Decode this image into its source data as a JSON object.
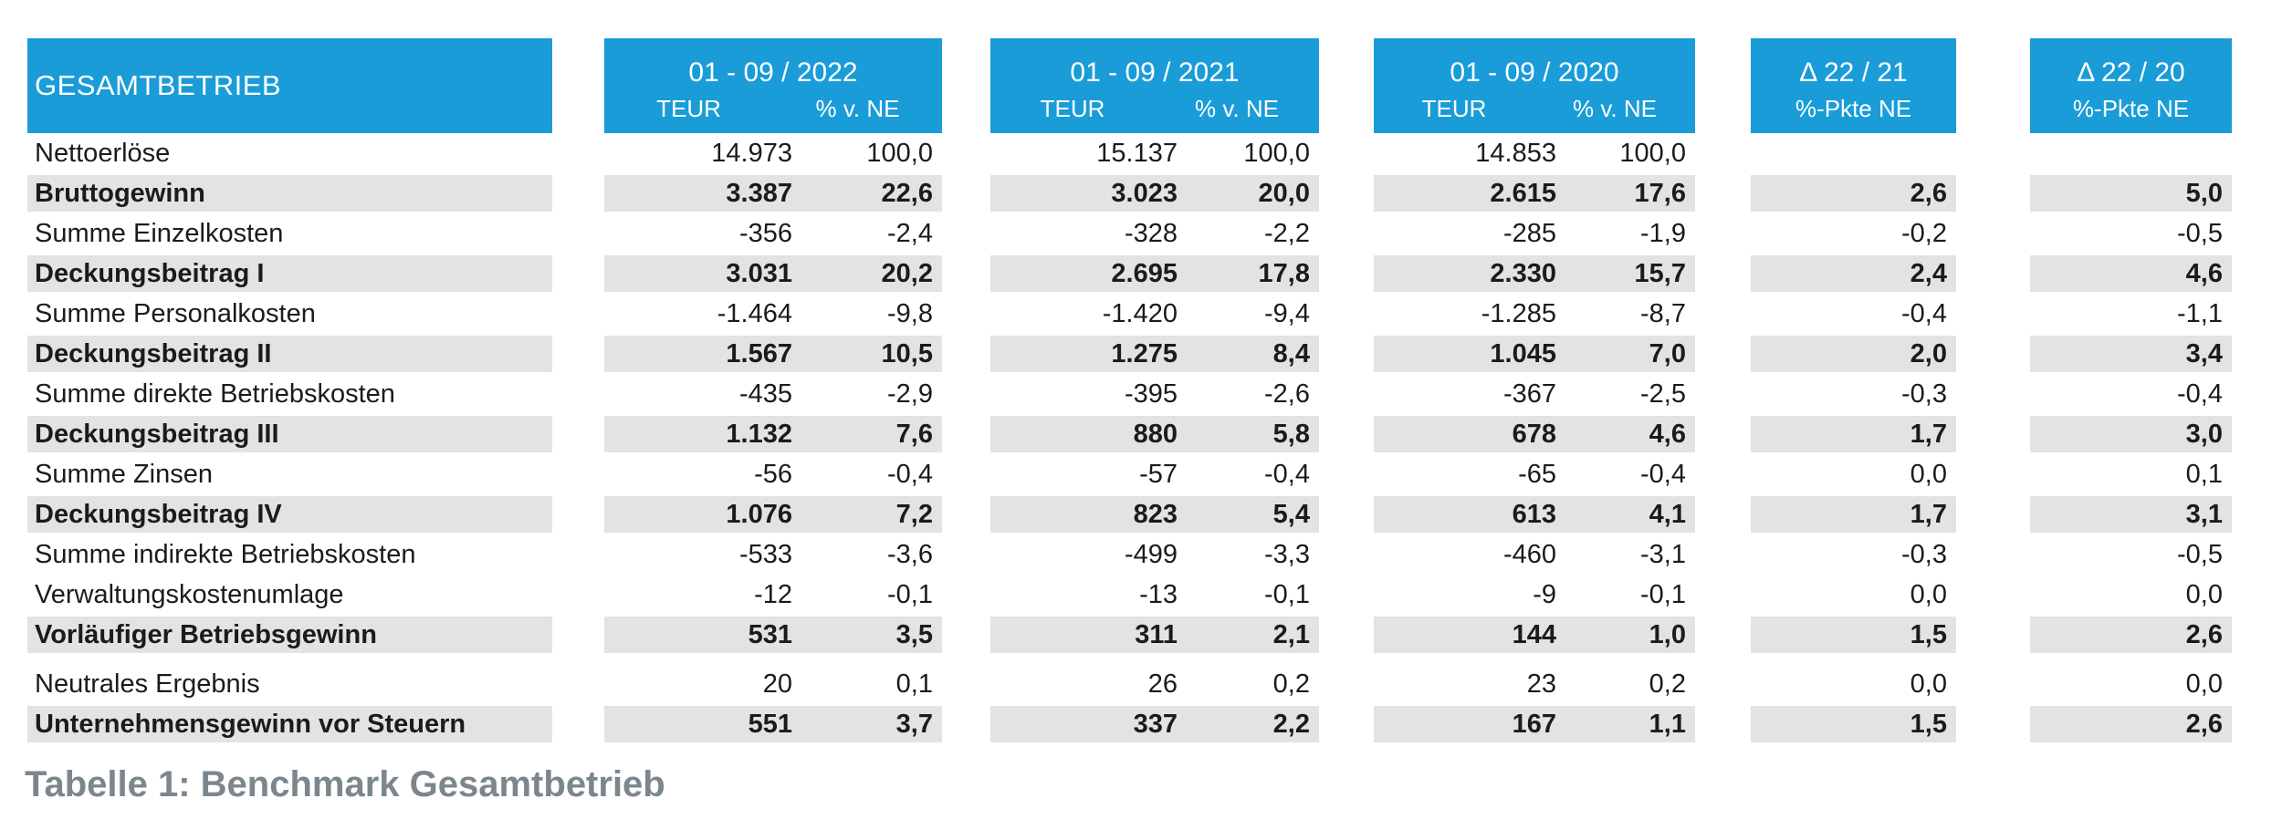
{
  "table": {
    "title": "GESAMTBETRIEB",
    "column_groups": [
      {
        "label": "01 - 09 / 2022",
        "sub_teur": "TEUR",
        "sub_pct": "% v. NE"
      },
      {
        "label": "01 - 09 / 2021",
        "sub_teur": "TEUR",
        "sub_pct": "% v. NE"
      },
      {
        "label": "01 - 09 / 2020",
        "sub_teur": "TEUR",
        "sub_pct": "% v. NE"
      },
      {
        "label": "Δ 22 / 21",
        "sub": "%-Pkte NE"
      },
      {
        "label": "Δ 22 / 20",
        "sub": "%-Pkte NE"
      }
    ],
    "rows": [
      {
        "label": "Nettoerlöse",
        "bold": false,
        "gap_before": false,
        "values": [
          "14.973",
          "100,0",
          "15.137",
          "100,0",
          "14.853",
          "100,0",
          "",
          ""
        ]
      },
      {
        "label": "Bruttogewinn",
        "bold": true,
        "gap_before": false,
        "values": [
          "3.387",
          "22,6",
          "3.023",
          "20,0",
          "2.615",
          "17,6",
          "2,6",
          "5,0"
        ]
      },
      {
        "label": "Summe Einzelkosten",
        "bold": false,
        "gap_before": false,
        "values": [
          "-356",
          "-2,4",
          "-328",
          "-2,2",
          "-285",
          "-1,9",
          "-0,2",
          "-0,5"
        ]
      },
      {
        "label": "Deckungsbeitrag I",
        "bold": true,
        "gap_before": false,
        "values": [
          "3.031",
          "20,2",
          "2.695",
          "17,8",
          "2.330",
          "15,7",
          "2,4",
          "4,6"
        ]
      },
      {
        "label": "Summe Personalkosten",
        "bold": false,
        "gap_before": false,
        "values": [
          "-1.464",
          "-9,8",
          "-1.420",
          "-9,4",
          "-1.285",
          "-8,7",
          "-0,4",
          "-1,1"
        ]
      },
      {
        "label": "Deckungsbeitrag II",
        "bold": true,
        "gap_before": false,
        "values": [
          "1.567",
          "10,5",
          "1.275",
          "8,4",
          "1.045",
          "7,0",
          "2,0",
          "3,4"
        ]
      },
      {
        "label": "Summe direkte Betriebskosten",
        "bold": false,
        "gap_before": false,
        "values": [
          "-435",
          "-2,9",
          "-395",
          "-2,6",
          "-367",
          "-2,5",
          "-0,3",
          "-0,4"
        ]
      },
      {
        "label": "Deckungsbeitrag III",
        "bold": true,
        "gap_before": false,
        "values": [
          "1.132",
          "7,6",
          "880",
          "5,8",
          "678",
          "4,6",
          "1,7",
          "3,0"
        ]
      },
      {
        "label": "Summe Zinsen",
        "bold": false,
        "gap_before": false,
        "values": [
          "-56",
          "-0,4",
          "-57",
          "-0,4",
          "-65",
          "-0,4",
          "0,0",
          "0,1"
        ]
      },
      {
        "label": "Deckungsbeitrag IV",
        "bold": true,
        "gap_before": false,
        "values": [
          "1.076",
          "7,2",
          "823",
          "5,4",
          "613",
          "4,1",
          "1,7",
          "3,1"
        ]
      },
      {
        "label": "Summe indirekte Betriebskosten",
        "bold": false,
        "gap_before": false,
        "values": [
          "-533",
          "-3,6",
          "-499",
          "-3,3",
          "-460",
          "-3,1",
          "-0,3",
          "-0,5"
        ]
      },
      {
        "label": "Verwaltungskostenumlage",
        "bold": false,
        "gap_before": false,
        "values": [
          "-12",
          "-0,1",
          "-13",
          "-0,1",
          "-9",
          "-0,1",
          "0,0",
          "0,0"
        ]
      },
      {
        "label": "Vorläufiger Betriebsgewinn",
        "bold": true,
        "gap_before": false,
        "values": [
          "531",
          "3,5",
          "311",
          "2,1",
          "144",
          "1,0",
          "1,5",
          "2,6"
        ]
      },
      {
        "label": "Neutrales Ergebnis",
        "bold": false,
        "gap_before": true,
        "values": [
          "20",
          "0,1",
          "26",
          "0,2",
          "23",
          "0,2",
          "0,0",
          "0,0"
        ]
      },
      {
        "label": "Unternehmensgewinn vor Steuern",
        "bold": true,
        "gap_before": false,
        "values": [
          "551",
          "3,7",
          "337",
          "2,2",
          "167",
          "1,1",
          "1,5",
          "2,6"
        ]
      }
    ]
  },
  "caption": "Tabelle 1: Benchmark Gesamtbetrieb",
  "colors": {
    "header_blue": "#199CD8",
    "shaded_row": "#E3E3E3",
    "caption_gray": "#7B878C",
    "text": "#1B1B1B"
  }
}
